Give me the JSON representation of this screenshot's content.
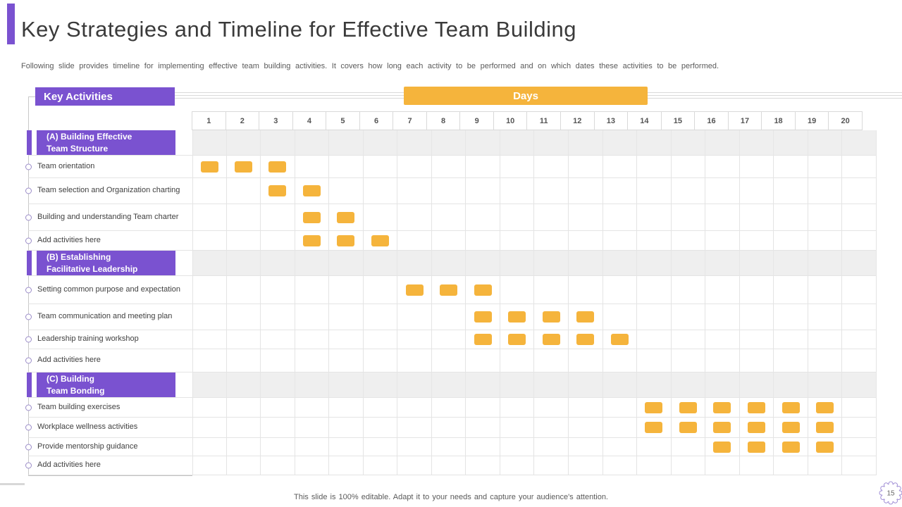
{
  "slide": {
    "title": "Key Strategies and Timeline for Effective Team Building",
    "subtitle": "Following slide provides timeline for implementing effective team building activities. It covers how long each activity to be performed and on which dates these activities to be performed.",
    "footer": "This slide is 100% editable. Adapt it to your needs and capture your audience's attention.",
    "page_number": "15"
  },
  "table": {
    "left_header": "Key Activities",
    "days_header": "Days"
  },
  "colors": {
    "purple": "#7A52D0",
    "yellow": "#F5B43C",
    "band_gray": "#EFEFEF"
  },
  "chart_data": {
    "type": "heatmap",
    "title": "Key Strategies and Timeline for Effective Team Building",
    "x_label": "Days",
    "x": [
      1,
      2,
      3,
      4,
      5,
      6,
      7,
      8,
      9,
      10,
      11,
      12,
      13,
      14,
      15,
      16,
      17,
      18,
      19,
      20
    ],
    "x_range": [
      1,
      20
    ],
    "mark_color": "#F5B43C",
    "legend": "none",
    "grid": true,
    "sections": [
      {
        "id": "A",
        "name": "(A) Building Effective Team Structure",
        "label_lines": [
          "(A) Building Effective",
          "Team Structure"
        ],
        "rows": [
          {
            "activity": "Team orientation",
            "days": [
              1,
              2,
              3
            ]
          },
          {
            "activity": "Team selection and Organization charting",
            "days": [
              3,
              4
            ]
          },
          {
            "activity": "Building and understanding Team charter",
            "days": [
              4,
              5
            ]
          },
          {
            "activity": "Add activities here",
            "days": [
              4,
              5,
              6
            ]
          }
        ]
      },
      {
        "id": "B",
        "name": "(B) Establishing Facilitative Leadership",
        "label_lines": [
          "(B) Establishing",
          "Facilitative Leadership"
        ],
        "rows": [
          {
            "activity": "Setting common purpose and expectation",
            "days": [
              7,
              8,
              9
            ]
          },
          {
            "activity": "Team communication and meeting plan",
            "days": [
              9,
              10,
              11,
              12
            ]
          },
          {
            "activity": "Leadership training workshop",
            "days": [
              9,
              10,
              11,
              12,
              13
            ]
          },
          {
            "activity": "Add activities here",
            "days": []
          }
        ]
      },
      {
        "id": "C",
        "name": "(C) Building Team Bonding",
        "label_lines": [
          "(C) Building",
          "Team Bonding"
        ],
        "rows": [
          {
            "activity": "Team building exercises",
            "days": [
              14,
              15,
              16,
              17,
              18,
              19
            ]
          },
          {
            "activity": "Workplace wellness activities",
            "days": [
              14,
              15,
              16,
              17,
              18,
              19
            ]
          },
          {
            "activity": "Provide mentorship guidance",
            "days": [
              16,
              17,
              18,
              19
            ]
          },
          {
            "activity": "Add activities here",
            "days": []
          }
        ]
      }
    ]
  }
}
